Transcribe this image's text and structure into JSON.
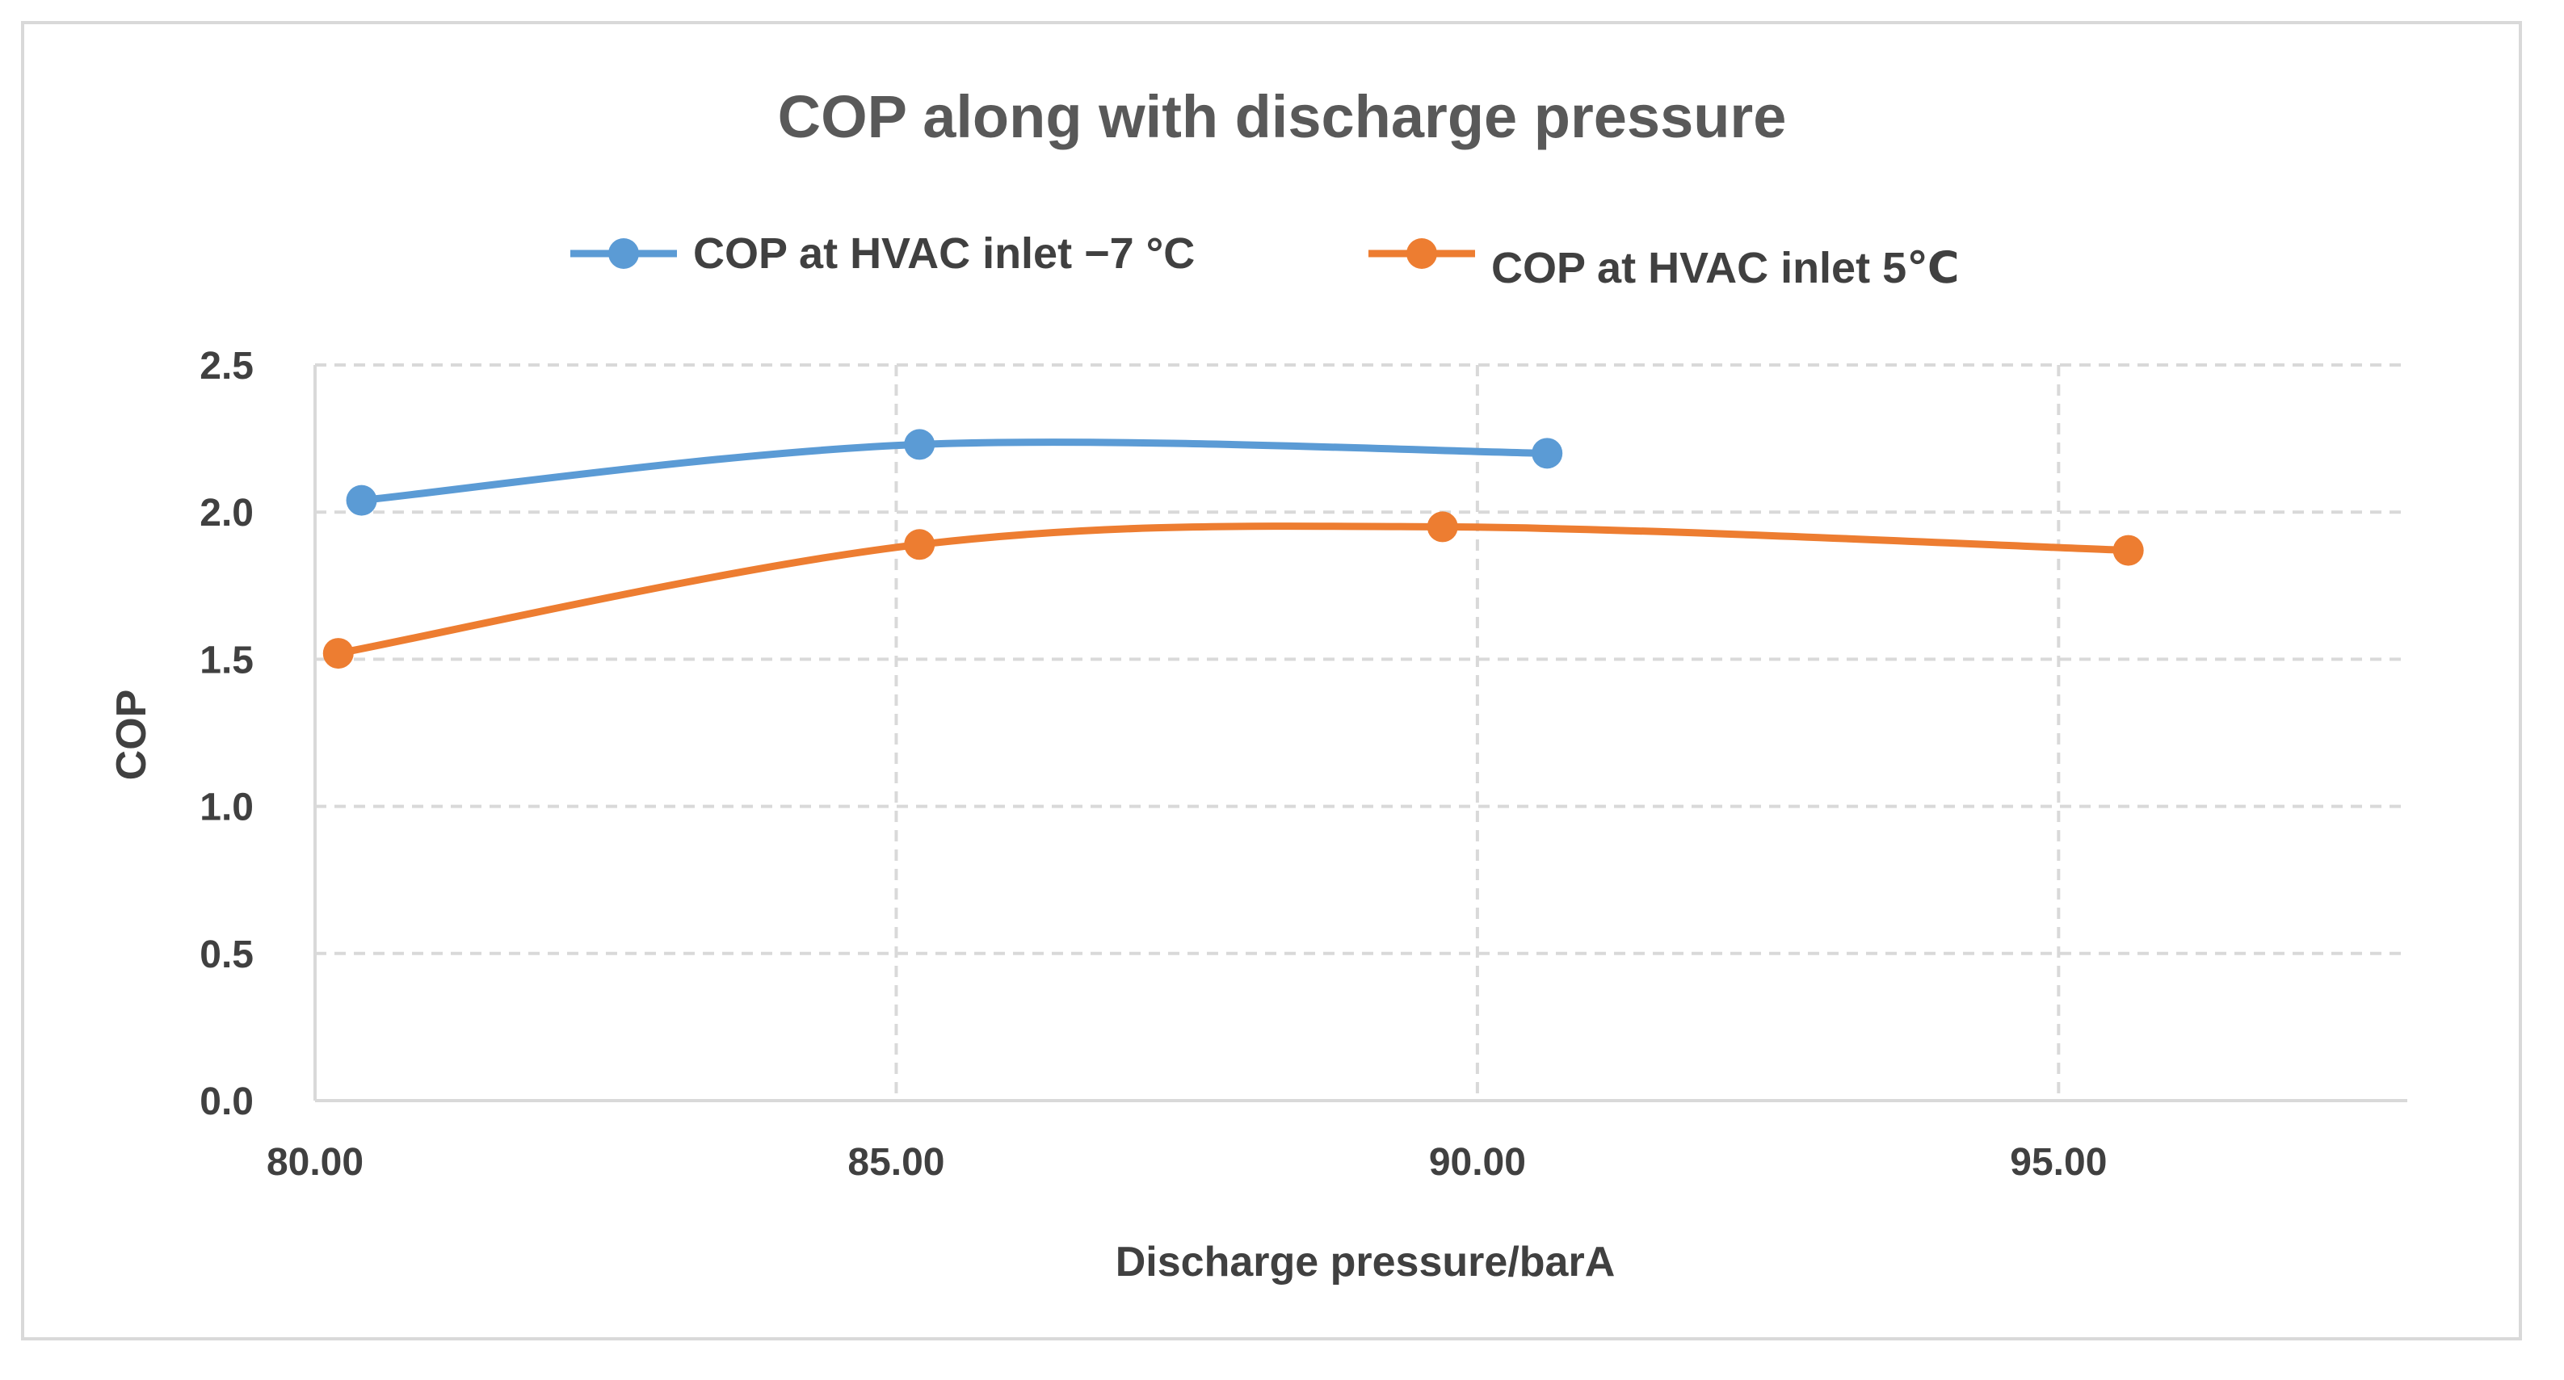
{
  "chart_data": {
    "type": "line",
    "title": "COP along with discharge pressure",
    "xlabel": "Discharge pressure/barA",
    "ylabel": "COP",
    "xlim": [
      80,
      98
    ],
    "ylim": [
      0,
      2.5
    ],
    "x_ticks": [
      "80.00",
      "85.00",
      "90.00",
      "95.00"
    ],
    "y_ticks": [
      "0.0",
      "0.5",
      "1.0",
      "1.5",
      "2.0",
      "2.5"
    ],
    "grid": true,
    "legend_position": "top",
    "smooth": true,
    "series": [
      {
        "name": "COP at HVAC inlet  −7 °C",
        "color": "#5b9bd5",
        "x": [
          80.4,
          85.2,
          90.6
        ],
        "y": [
          2.04,
          2.23,
          2.2
        ]
      },
      {
        "name": "COP at HVAC inlet 5℃",
        "color": "#ed7d31",
        "x": [
          80.2,
          85.2,
          89.7,
          95.6
        ],
        "y": [
          1.52,
          1.89,
          1.95,
          1.87
        ]
      }
    ]
  }
}
